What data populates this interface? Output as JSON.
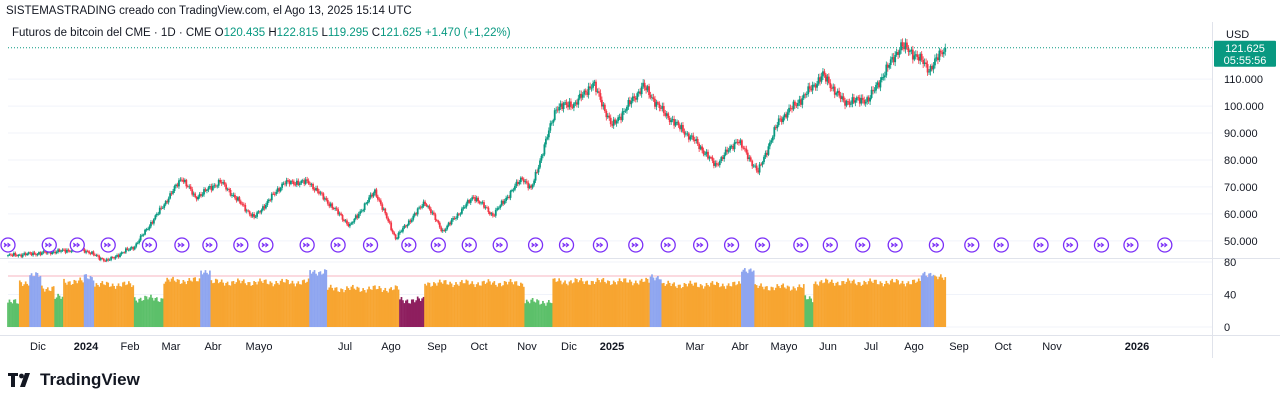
{
  "header": {
    "attribution": "SISTEMASTRADING creado con TradingView.com, el Ago 13, 2025 15:14 UTC"
  },
  "legend": {
    "symbol": "Futuros de bitcoin del CME · 1D · CME",
    "o_label": "O",
    "o_value": "120.435",
    "h_label": "H",
    "h_value": "122.815",
    "l_label": "L",
    "l_value": "119.295",
    "c_label": "C",
    "c_value": "121.625",
    "change": "+1.470 (+1,22%)"
  },
  "price_badge": {
    "price": "121.625",
    "countdown": "05:55:56"
  },
  "logo": {
    "text": "TradingView"
  },
  "colors": {
    "up": "#089981",
    "down": "#f23645",
    "accent": "#7b2ff7"
  },
  "chart_data": [
    {
      "type": "candlestick",
      "title": "Futuros de bitcoin del CME · 1D · CME",
      "currency": "USD",
      "ylim": [
        44000,
        126000
      ],
      "y_ticks": [
        50000,
        60000,
        70000,
        80000,
        90000,
        100000,
        110000
      ],
      "y_tick_labels": [
        "50.000",
        "60.000",
        "70.000",
        "80.000",
        "90.000",
        "100.000",
        "110.000"
      ],
      "x_tick_labels": [
        "Dic",
        "2024",
        "Feb",
        "Mar",
        "Abr",
        "Mayo",
        "Jul",
        "Ago",
        "Sep",
        "Oct",
        "Nov",
        "Dic",
        "2025",
        "Mar",
        "Abr",
        "Mayo",
        "Jun",
        "Jul",
        "Ago",
        "Sep",
        "Oct",
        "Nov",
        "2026"
      ],
      "x_start": "2023-11-16",
      "x_end": "2026-02-10",
      "data_end": "2025-08-13",
      "keypoints": [
        [
          "2023-11-16",
          44500
        ],
        [
          "2023-12-10",
          45500
        ],
        [
          "2024-01-05",
          47000
        ],
        [
          "2024-01-22",
          42500
        ],
        [
          "2024-02-10",
          48000
        ],
        [
          "2024-02-28",
          62000
        ],
        [
          "2024-03-13",
          73500
        ],
        [
          "2024-03-22",
          66000
        ],
        [
          "2024-04-08",
          72000
        ],
        [
          "2024-04-20",
          65000
        ],
        [
          "2024-05-01",
          58500
        ],
        [
          "2024-05-21",
          71500
        ],
        [
          "2024-06-07",
          71800
        ],
        [
          "2024-06-25",
          61500
        ],
        [
          "2024-07-05",
          55500
        ],
        [
          "2024-07-22",
          68500
        ],
        [
          "2024-08-05",
          51000
        ],
        [
          "2024-08-25",
          64500
        ],
        [
          "2024-09-06",
          53500
        ],
        [
          "2024-09-27",
          66500
        ],
        [
          "2024-10-10",
          59500
        ],
        [
          "2024-10-30",
          73500
        ],
        [
          "2024-11-05",
          69000
        ],
        [
          "2024-11-22",
          99500
        ],
        [
          "2024-12-05",
          101000
        ],
        [
          "2024-12-17",
          108500
        ],
        [
          "2024-12-30",
          92500
        ],
        [
          "2025-01-20",
          107500
        ],
        [
          "2025-02-03",
          97500
        ],
        [
          "2025-02-25",
          86500
        ],
        [
          "2025-03-10",
          78000
        ],
        [
          "2025-03-25",
          87500
        ],
        [
          "2025-04-08",
          75500
        ],
        [
          "2025-04-22",
          94500
        ],
        [
          "2025-05-08",
          103000
        ],
        [
          "2025-05-22",
          111500
        ],
        [
          "2025-06-05",
          101500
        ],
        [
          "2025-06-22",
          102500
        ],
        [
          "2025-07-14",
          122500
        ],
        [
          "2025-07-25",
          118500
        ],
        [
          "2025-08-02",
          113500
        ],
        [
          "2025-08-13",
          121625
        ]
      ],
      "event_markers": [
        "2023-11-16",
        "2023-12-14",
        "2024-01-02",
        "2024-01-23",
        "2024-02-20",
        "2024-03-13",
        "2024-04-01",
        "2024-04-22",
        "2024-05-09",
        "2024-06-06",
        "2024-06-27",
        "2024-07-19",
        "2024-08-14",
        "2024-09-03",
        "2024-09-24",
        "2024-10-15",
        "2024-11-08",
        "2024-11-29",
        "2024-12-22",
        "2025-01-15",
        "2025-02-06",
        "2025-02-28",
        "2025-03-21",
        "2025-04-11",
        "2025-05-07",
        "2025-05-27",
        "2025-06-18",
        "2025-07-10",
        "2025-08-07",
        "2025-08-31",
        "2025-09-20",
        "2025-10-17",
        "2025-11-06",
        "2025-11-27",
        "2025-12-17",
        "2026-01-09"
      ]
    },
    {
      "type": "bar",
      "role": "oscillator",
      "ylim": [
        0,
        80
      ],
      "y_ticks": [
        0,
        40,
        80
      ],
      "y_tick_labels": [
        "0",
        "40",
        "80"
      ],
      "reference_lines": [
        80
      ],
      "color_legend": {
        "high": "#8ea5f0",
        "mid": "#f7a531",
        "low": "#5cc06a",
        "extreme_low": "#8e1f5f"
      },
      "segments": [
        {
          "from": "2023-11-16",
          "to": "2023-11-24",
          "value": 30,
          "color": "#5cc06a"
        },
        {
          "from": "2023-11-24",
          "to": "2023-12-01",
          "value": 55,
          "color": "#f7a531"
        },
        {
          "from": "2023-12-01",
          "to": "2023-12-09",
          "value": 63,
          "color": "#8ea5f0"
        },
        {
          "from": "2023-12-09",
          "to": "2023-12-18",
          "value": 48,
          "color": "#f7a531"
        },
        {
          "from": "2023-12-18",
          "to": "2023-12-24",
          "value": 36,
          "color": "#5cc06a"
        },
        {
          "from": "2023-12-24",
          "to": "2024-01-07",
          "value": 56,
          "color": "#f7a531"
        },
        {
          "from": "2024-01-07",
          "to": "2024-01-14",
          "value": 62,
          "color": "#8ea5f0"
        },
        {
          "from": "2024-01-14",
          "to": "2024-02-10",
          "value": 52,
          "color": "#f7a531"
        },
        {
          "from": "2024-02-10",
          "to": "2024-03-01",
          "value": 35,
          "color": "#5cc06a"
        },
        {
          "from": "2024-03-01",
          "to": "2024-03-26",
          "value": 57,
          "color": "#f7a531"
        },
        {
          "from": "2024-03-26",
          "to": "2024-04-02",
          "value": 69,
          "color": "#8ea5f0"
        },
        {
          "from": "2024-04-02",
          "to": "2024-06-08",
          "value": 55,
          "color": "#f7a531"
        },
        {
          "from": "2024-06-08",
          "to": "2024-06-20",
          "value": 68,
          "color": "#8ea5f0"
        },
        {
          "from": "2024-06-20",
          "to": "2024-08-08",
          "value": 47,
          "color": "#f7a531"
        },
        {
          "from": "2024-08-08",
          "to": "2024-08-25",
          "value": 33,
          "color": "#8e1f5f"
        },
        {
          "from": "2024-08-25",
          "to": "2024-11-01",
          "value": 54,
          "color": "#f7a531"
        },
        {
          "from": "2024-11-01",
          "to": "2024-11-20",
          "value": 31,
          "color": "#5cc06a"
        },
        {
          "from": "2024-11-20",
          "to": "2025-01-25",
          "value": 56,
          "color": "#f7a531"
        },
        {
          "from": "2025-01-25",
          "to": "2025-02-02",
          "value": 62,
          "color": "#8ea5f0"
        },
        {
          "from": "2025-02-02",
          "to": "2025-03-28",
          "value": 52,
          "color": "#f7a531"
        },
        {
          "from": "2025-03-28",
          "to": "2025-04-06",
          "value": 71,
          "color": "#8ea5f0"
        },
        {
          "from": "2025-04-06",
          "to": "2025-05-10",
          "value": 49,
          "color": "#f7a531"
        },
        {
          "from": "2025-05-10",
          "to": "2025-05-16",
          "value": 35,
          "color": "#5cc06a"
        },
        {
          "from": "2025-05-16",
          "to": "2025-07-28",
          "value": 55,
          "color": "#f7a531"
        },
        {
          "from": "2025-07-28",
          "to": "2025-08-06",
          "value": 66,
          "color": "#8ea5f0"
        },
        {
          "from": "2025-08-06",
          "to": "2025-08-14",
          "value": 60,
          "color": "#f7a531"
        }
      ]
    }
  ]
}
